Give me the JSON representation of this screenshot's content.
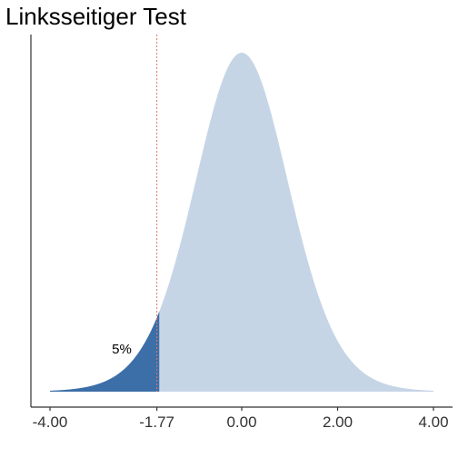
{
  "chart_data": {
    "type": "area",
    "title": "Linksseitiger Test",
    "xlabel": "",
    "ylabel": "",
    "distribution": "t",
    "degrees_of_freedom": 16,
    "xlim": [
      -4.0,
      4.0
    ],
    "ylim": [
      0,
      0.4
    ],
    "critical_value": -1.77,
    "tail": "left",
    "alpha_label": "5%",
    "x_ticks": [
      -4.0,
      -1.77,
      0.0,
      2.0,
      4.0
    ],
    "x_tick_labels": [
      "-4.00",
      "-1.77",
      "0.00",
      "2.00",
      "4.00"
    ],
    "colors": {
      "density_fill": "#c6d5e6",
      "rejection_fill": "#3c6ea8",
      "critical_line": "#e07a5f",
      "axis": "#333333"
    },
    "grid": false,
    "legend": "none"
  }
}
